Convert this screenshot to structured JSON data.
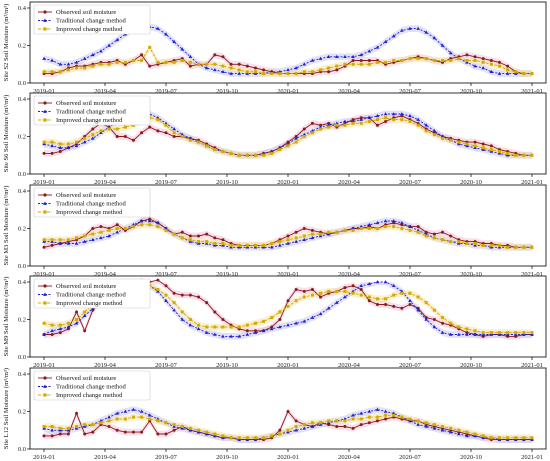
{
  "chart_data": [
    {
      "type": "line",
      "site": "Site S2",
      "ylabel": "Site S2 Soil Moisture (m³/m³)",
      "ylim": [
        0,
        0.4
      ],
      "yticks": [
        "0.0",
        "0.2",
        "0.4"
      ],
      "legend_position": "top-left",
      "series": [
        {
          "name": "Observed soil moisture",
          "values": [
            0.05,
            0.05,
            0.06,
            0.08,
            0.09,
            0.09,
            0.1,
            0.11,
            0.11,
            0.12,
            0.1,
            0.12,
            0.15,
            0.09,
            0.1,
            0.11,
            0.12,
            0.13,
            0.09,
            0.1,
            0.1,
            0.15,
            0.14,
            0.1,
            0.1,
            0.09,
            0.08,
            0.07,
            0.06,
            0.05,
            0.05,
            0.05,
            0.05,
            0.05,
            0.06,
            0.06,
            0.07,
            0.09,
            0.12,
            0.12,
            0.12,
            0.12,
            0.1,
            0.11,
            0.12,
            0.13,
            0.14,
            0.13,
            0.12,
            0.11,
            0.13,
            0.14,
            0.15,
            0.14,
            0.13,
            0.12,
            0.11,
            0.09,
            0.06,
            0.05,
            0.05
          ]
        },
        {
          "name": "Traditional change method",
          "values": [
            0.13,
            0.12,
            0.1,
            0.1,
            0.11,
            0.13,
            0.15,
            0.17,
            0.2,
            0.23,
            0.26,
            0.29,
            0.3,
            0.3,
            0.29,
            0.26,
            0.22,
            0.18,
            0.14,
            0.1,
            0.08,
            0.07,
            0.06,
            0.05,
            0.05,
            0.05,
            0.05,
            0.05,
            0.06,
            0.06,
            0.07,
            0.08,
            0.1,
            0.12,
            0.13,
            0.14,
            0.14,
            0.14,
            0.14,
            0.15,
            0.17,
            0.19,
            0.22,
            0.25,
            0.28,
            0.29,
            0.29,
            0.27,
            0.24,
            0.2,
            0.16,
            0.13,
            0.11,
            0.09,
            0.08,
            0.06,
            0.05,
            0.05,
            0.05,
            0.05,
            0.05
          ]
        },
        {
          "name": "Improved change method",
          "values": [
            0.06,
            0.06,
            0.06,
            0.07,
            0.08,
            0.08,
            0.09,
            0.1,
            0.1,
            0.11,
            0.11,
            0.12,
            0.12,
            0.19,
            0.11,
            0.11,
            0.11,
            0.12,
            0.11,
            0.1,
            0.1,
            0.1,
            0.09,
            0.08,
            0.07,
            0.06,
            0.06,
            0.05,
            0.05,
            0.05,
            0.05,
            0.05,
            0.06,
            0.06,
            0.07,
            0.08,
            0.09,
            0.1,
            0.1,
            0.1,
            0.1,
            0.11,
            0.11,
            0.12,
            0.12,
            0.13,
            0.13,
            0.13,
            0.12,
            0.12,
            0.12,
            0.13,
            0.12,
            0.12,
            0.11,
            0.1,
            0.09,
            0.07,
            0.06,
            0.05,
            0.05
          ]
        }
      ]
    },
    {
      "type": "line",
      "site": "Site S6",
      "ylabel": "Site S6 Soil Moisture (m³/m³)",
      "ylim": [
        0,
        0.4
      ],
      "yticks": [
        "0.0",
        "0.2",
        "0.4"
      ],
      "legend_position": "top-left",
      "series": [
        {
          "name": "Observed soil moisture",
          "values": [
            0.11,
            0.11,
            0.12,
            0.14,
            0.16,
            0.2,
            0.24,
            0.27,
            0.25,
            0.2,
            0.2,
            0.18,
            0.22,
            0.25,
            0.23,
            0.22,
            0.2,
            0.2,
            0.19,
            0.18,
            0.16,
            0.14,
            0.12,
            0.11,
            0.1,
            0.1,
            0.1,
            0.11,
            0.12,
            0.14,
            0.17,
            0.2,
            0.24,
            0.27,
            0.26,
            0.27,
            0.25,
            0.27,
            0.29,
            0.3,
            0.3,
            0.26,
            0.28,
            0.3,
            0.31,
            0.29,
            0.27,
            0.24,
            0.22,
            0.2,
            0.19,
            0.18,
            0.17,
            0.17,
            0.16,
            0.15,
            0.13,
            0.12,
            0.11,
            0.1,
            0.1
          ]
        },
        {
          "name": "Traditional change method",
          "values": [
            0.16,
            0.15,
            0.14,
            0.14,
            0.15,
            0.17,
            0.19,
            0.22,
            0.25,
            0.28,
            0.3,
            0.32,
            0.32,
            0.32,
            0.3,
            0.27,
            0.24,
            0.21,
            0.19,
            0.17,
            0.15,
            0.13,
            0.12,
            0.11,
            0.1,
            0.1,
            0.1,
            0.11,
            0.12,
            0.14,
            0.16,
            0.19,
            0.21,
            0.23,
            0.25,
            0.26,
            0.27,
            0.28,
            0.28,
            0.29,
            0.3,
            0.31,
            0.32,
            0.32,
            0.32,
            0.31,
            0.29,
            0.26,
            0.23,
            0.2,
            0.18,
            0.16,
            0.15,
            0.14,
            0.13,
            0.12,
            0.11,
            0.1,
            0.1,
            0.1,
            0.1
          ]
        },
        {
          "name": "Improved change method",
          "values": [
            0.17,
            0.17,
            0.16,
            0.16,
            0.17,
            0.19,
            0.21,
            0.23,
            0.24,
            0.24,
            0.25,
            0.26,
            0.29,
            0.3,
            0.29,
            0.26,
            0.22,
            0.2,
            0.18,
            0.17,
            0.15,
            0.13,
            0.12,
            0.11,
            0.1,
            0.1,
            0.1,
            0.1,
            0.11,
            0.13,
            0.15,
            0.17,
            0.2,
            0.22,
            0.24,
            0.25,
            0.26,
            0.26,
            0.27,
            0.27,
            0.28,
            0.29,
            0.3,
            0.29,
            0.29,
            0.28,
            0.26,
            0.23,
            0.21,
            0.19,
            0.18,
            0.17,
            0.16,
            0.15,
            0.14,
            0.13,
            0.12,
            0.11,
            0.1,
            0.1,
            0.1
          ]
        }
      ]
    },
    {
      "type": "line",
      "site": "Site M3",
      "ylabel": "Site M3 Soil Moisture (m³/m³)",
      "ylim": [
        0,
        0.4
      ],
      "yticks": [
        "0.0",
        "0.2",
        "0.4"
      ],
      "legend_position": "top-left",
      "series": [
        {
          "name": "Observed soil moisture",
          "values": [
            0.1,
            0.11,
            0.12,
            0.13,
            0.14,
            0.16,
            0.2,
            0.21,
            0.2,
            0.22,
            0.19,
            0.21,
            0.24,
            0.25,
            0.23,
            0.2,
            0.17,
            0.18,
            0.16,
            0.16,
            0.17,
            0.15,
            0.14,
            0.12,
            0.11,
            0.11,
            0.11,
            0.11,
            0.12,
            0.14,
            0.16,
            0.18,
            0.2,
            0.19,
            0.18,
            0.17,
            0.18,
            0.19,
            0.2,
            0.2,
            0.21,
            0.2,
            0.22,
            0.23,
            0.22,
            0.21,
            0.21,
            0.18,
            0.17,
            0.18,
            0.16,
            0.14,
            0.13,
            0.13,
            0.12,
            0.12,
            0.11,
            0.11,
            0.1,
            0.1,
            0.1
          ]
        },
        {
          "name": "Traditional change method",
          "values": [
            0.13,
            0.13,
            0.12,
            0.12,
            0.12,
            0.13,
            0.14,
            0.15,
            0.16,
            0.18,
            0.2,
            0.22,
            0.24,
            0.24,
            0.23,
            0.2,
            0.17,
            0.15,
            0.13,
            0.12,
            0.12,
            0.11,
            0.11,
            0.1,
            0.1,
            0.1,
            0.1,
            0.1,
            0.1,
            0.11,
            0.12,
            0.13,
            0.14,
            0.15,
            0.16,
            0.17,
            0.18,
            0.19,
            0.2,
            0.21,
            0.22,
            0.23,
            0.24,
            0.24,
            0.23,
            0.21,
            0.19,
            0.17,
            0.15,
            0.14,
            0.13,
            0.12,
            0.12,
            0.11,
            0.11,
            0.1,
            0.1,
            0.1,
            0.1,
            0.1,
            0.1
          ]
        },
        {
          "name": "Improved change method",
          "values": [
            0.14,
            0.14,
            0.14,
            0.14,
            0.15,
            0.16,
            0.17,
            0.18,
            0.19,
            0.2,
            0.2,
            0.21,
            0.22,
            0.22,
            0.21,
            0.19,
            0.17,
            0.15,
            0.14,
            0.13,
            0.13,
            0.12,
            0.12,
            0.11,
            0.11,
            0.11,
            0.11,
            0.11,
            0.12,
            0.13,
            0.14,
            0.15,
            0.16,
            0.17,
            0.17,
            0.18,
            0.18,
            0.19,
            0.19,
            0.2,
            0.2,
            0.2,
            0.21,
            0.21,
            0.2,
            0.19,
            0.18,
            0.16,
            0.15,
            0.14,
            0.13,
            0.13,
            0.12,
            0.12,
            0.11,
            0.11,
            0.11,
            0.1,
            0.1,
            0.1,
            0.1
          ]
        }
      ]
    },
    {
      "type": "line",
      "site": "Site M9",
      "ylabel": "Site M9 Soil Moisture (m³/m³)",
      "ylim": [
        0,
        0.4
      ],
      "yticks": [
        "0.0",
        "0.2",
        "0.4"
      ],
      "legend_position": "top-left",
      "series": [
        {
          "name": "Observed soil moisture",
          "values": [
            0.12,
            0.12,
            0.13,
            0.15,
            0.24,
            0.14,
            0.25,
            0.3,
            0.32,
            0.34,
            0.37,
            0.4,
            0.41,
            0.4,
            0.41,
            0.38,
            0.34,
            0.33,
            0.33,
            0.32,
            0.29,
            0.24,
            0.2,
            0.17,
            0.15,
            0.14,
            0.14,
            0.14,
            0.16,
            0.2,
            0.3,
            0.36,
            0.35,
            0.36,
            0.32,
            0.34,
            0.35,
            0.37,
            0.38,
            0.36,
            0.3,
            0.28,
            0.28,
            0.27,
            0.26,
            0.28,
            0.26,
            0.21,
            0.2,
            0.18,
            0.17,
            0.15,
            0.13,
            0.12,
            0.11,
            0.12,
            0.12,
            0.11,
            0.11,
            0.12,
            0.12
          ]
        },
        {
          "name": "Traditional change method",
          "values": [
            0.12,
            0.14,
            0.15,
            0.16,
            0.18,
            0.22,
            0.26,
            0.3,
            0.34,
            0.37,
            0.39,
            0.4,
            0.4,
            0.38,
            0.35,
            0.3,
            0.25,
            0.2,
            0.17,
            0.15,
            0.13,
            0.12,
            0.11,
            0.11,
            0.11,
            0.12,
            0.13,
            0.14,
            0.15,
            0.16,
            0.17,
            0.18,
            0.19,
            0.21,
            0.23,
            0.26,
            0.29,
            0.32,
            0.35,
            0.38,
            0.39,
            0.4,
            0.4,
            0.38,
            0.35,
            0.3,
            0.25,
            0.2,
            0.16,
            0.13,
            0.12,
            0.12,
            0.12,
            0.12,
            0.12,
            0.12,
            0.12,
            0.12,
            0.12,
            0.12,
            0.12
          ]
        },
        {
          "name": "Improved change method",
          "values": [
            0.18,
            0.17,
            0.17,
            0.18,
            0.2,
            0.24,
            0.28,
            0.31,
            0.33,
            0.35,
            0.36,
            0.38,
            0.39,
            0.38,
            0.36,
            0.33,
            0.29,
            0.24,
            0.2,
            0.17,
            0.16,
            0.16,
            0.16,
            0.16,
            0.16,
            0.17,
            0.18,
            0.19,
            0.21,
            0.24,
            0.27,
            0.3,
            0.32,
            0.33,
            0.34,
            0.35,
            0.35,
            0.35,
            0.34,
            0.33,
            0.32,
            0.31,
            0.31,
            0.33,
            0.34,
            0.34,
            0.32,
            0.29,
            0.25,
            0.21,
            0.18,
            0.16,
            0.15,
            0.14,
            0.13,
            0.13,
            0.13,
            0.13,
            0.13,
            0.13,
            0.13
          ]
        }
      ]
    },
    {
      "type": "line",
      "site": "Site L12",
      "ylabel": "Site L12 Soil Moisture (m³/m³)",
      "ylim": [
        0,
        0.4
      ],
      "yticks": [
        "0.0",
        "0.2",
        "0.4"
      ],
      "legend_position": "top-left",
      "series": [
        {
          "name": "Observed soil moisture",
          "values": [
            0.07,
            0.07,
            0.08,
            0.08,
            0.19,
            0.08,
            0.09,
            0.13,
            0.12,
            0.1,
            0.09,
            0.09,
            0.09,
            0.15,
            0.08,
            0.08,
            0.1,
            0.12,
            0.1,
            0.09,
            0.08,
            0.07,
            0.06,
            0.06,
            0.05,
            0.05,
            0.05,
            0.05,
            0.06,
            0.1,
            0.2,
            0.15,
            0.13,
            0.12,
            0.14,
            0.13,
            0.12,
            0.12,
            0.11,
            0.13,
            0.14,
            0.15,
            0.16,
            0.17,
            0.16,
            0.15,
            0.15,
            0.13,
            0.12,
            0.11,
            0.1,
            0.09,
            0.08,
            0.07,
            0.06,
            0.05,
            0.05,
            0.05,
            0.05,
            0.05,
            0.05
          ]
        },
        {
          "name": "Traditional change method",
          "values": [
            0.11,
            0.1,
            0.1,
            0.1,
            0.11,
            0.12,
            0.13,
            0.15,
            0.17,
            0.19,
            0.2,
            0.21,
            0.2,
            0.18,
            0.16,
            0.14,
            0.12,
            0.11,
            0.1,
            0.09,
            0.08,
            0.07,
            0.06,
            0.06,
            0.05,
            0.05,
            0.05,
            0.06,
            0.07,
            0.08,
            0.09,
            0.1,
            0.11,
            0.12,
            0.13,
            0.14,
            0.15,
            0.16,
            0.18,
            0.19,
            0.2,
            0.21,
            0.2,
            0.19,
            0.17,
            0.15,
            0.13,
            0.12,
            0.11,
            0.1,
            0.09,
            0.08,
            0.07,
            0.07,
            0.06,
            0.06,
            0.05,
            0.05,
            0.05,
            0.05,
            0.05
          ]
        },
        {
          "name": "Improved change method",
          "values": [
            0.12,
            0.12,
            0.11,
            0.11,
            0.12,
            0.13,
            0.13,
            0.14,
            0.15,
            0.16,
            0.16,
            0.17,
            0.17,
            0.16,
            0.15,
            0.14,
            0.13,
            0.12,
            0.11,
            0.1,
            0.09,
            0.08,
            0.07,
            0.06,
            0.06,
            0.06,
            0.06,
            0.06,
            0.07,
            0.08,
            0.1,
            0.12,
            0.13,
            0.14,
            0.14,
            0.15,
            0.15,
            0.15,
            0.16,
            0.16,
            0.17,
            0.17,
            0.18,
            0.18,
            0.17,
            0.16,
            0.15,
            0.14,
            0.13,
            0.12,
            0.11,
            0.1,
            0.09,
            0.08,
            0.07,
            0.06,
            0.06,
            0.06,
            0.06,
            0.06,
            0.06
          ]
        }
      ]
    }
  ],
  "x_axis": {
    "start": "2019-01",
    "end": "2021-01",
    "tick_labels": [
      "2019-01",
      "2019-04",
      "2019-07",
      "2019-10",
      "2020-01",
      "2020-04",
      "2020-07",
      "2020-10",
      "2021-01"
    ]
  },
  "colors": {
    "observed": "#8b1a1a",
    "traditional": "#1f1fd6",
    "improved": "#d4aa00",
    "shade_observed": "#f2c4de",
    "shade_traditional": "#c9c9f4",
    "shade_improved": "#f3e3a8"
  },
  "markers": {
    "observed": "circle",
    "traditional": "triangle",
    "improved": "square"
  }
}
